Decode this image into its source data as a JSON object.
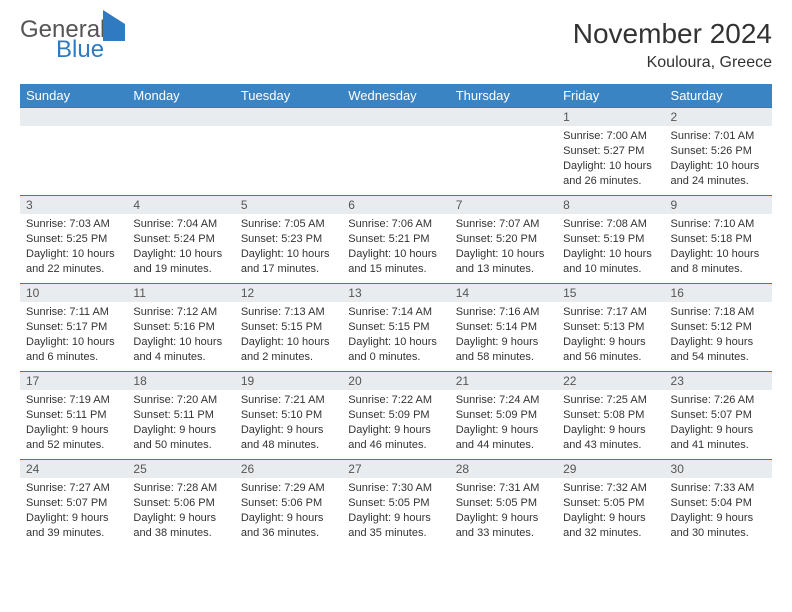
{
  "logo": {
    "general": "General",
    "blue": "Blue"
  },
  "title": "November 2024",
  "location": "Kouloura, Greece",
  "colors": {
    "header_bg": "#3b84c4",
    "border": "#2f7ac0",
    "daynum_bg": "#e9ecef",
    "text": "#333333"
  },
  "weekdays": [
    "Sunday",
    "Monday",
    "Tuesday",
    "Wednesday",
    "Thursday",
    "Friday",
    "Saturday"
  ],
  "weeks": [
    [
      null,
      null,
      null,
      null,
      null,
      {
        "n": "1",
        "sr": "Sunrise: 7:00 AM",
        "ss": "Sunset: 5:27 PM",
        "dl": "Daylight: 10 hours and 26 minutes."
      },
      {
        "n": "2",
        "sr": "Sunrise: 7:01 AM",
        "ss": "Sunset: 5:26 PM",
        "dl": "Daylight: 10 hours and 24 minutes."
      }
    ],
    [
      {
        "n": "3",
        "sr": "Sunrise: 7:03 AM",
        "ss": "Sunset: 5:25 PM",
        "dl": "Daylight: 10 hours and 22 minutes."
      },
      {
        "n": "4",
        "sr": "Sunrise: 7:04 AM",
        "ss": "Sunset: 5:24 PM",
        "dl": "Daylight: 10 hours and 19 minutes."
      },
      {
        "n": "5",
        "sr": "Sunrise: 7:05 AM",
        "ss": "Sunset: 5:23 PM",
        "dl": "Daylight: 10 hours and 17 minutes."
      },
      {
        "n": "6",
        "sr": "Sunrise: 7:06 AM",
        "ss": "Sunset: 5:21 PM",
        "dl": "Daylight: 10 hours and 15 minutes."
      },
      {
        "n": "7",
        "sr": "Sunrise: 7:07 AM",
        "ss": "Sunset: 5:20 PM",
        "dl": "Daylight: 10 hours and 13 minutes."
      },
      {
        "n": "8",
        "sr": "Sunrise: 7:08 AM",
        "ss": "Sunset: 5:19 PM",
        "dl": "Daylight: 10 hours and 10 minutes."
      },
      {
        "n": "9",
        "sr": "Sunrise: 7:10 AM",
        "ss": "Sunset: 5:18 PM",
        "dl": "Daylight: 10 hours and 8 minutes."
      }
    ],
    [
      {
        "n": "10",
        "sr": "Sunrise: 7:11 AM",
        "ss": "Sunset: 5:17 PM",
        "dl": "Daylight: 10 hours and 6 minutes."
      },
      {
        "n": "11",
        "sr": "Sunrise: 7:12 AM",
        "ss": "Sunset: 5:16 PM",
        "dl": "Daylight: 10 hours and 4 minutes."
      },
      {
        "n": "12",
        "sr": "Sunrise: 7:13 AM",
        "ss": "Sunset: 5:15 PM",
        "dl": "Daylight: 10 hours and 2 minutes."
      },
      {
        "n": "13",
        "sr": "Sunrise: 7:14 AM",
        "ss": "Sunset: 5:15 PM",
        "dl": "Daylight: 10 hours and 0 minutes."
      },
      {
        "n": "14",
        "sr": "Sunrise: 7:16 AM",
        "ss": "Sunset: 5:14 PM",
        "dl": "Daylight: 9 hours and 58 minutes."
      },
      {
        "n": "15",
        "sr": "Sunrise: 7:17 AM",
        "ss": "Sunset: 5:13 PM",
        "dl": "Daylight: 9 hours and 56 minutes."
      },
      {
        "n": "16",
        "sr": "Sunrise: 7:18 AM",
        "ss": "Sunset: 5:12 PM",
        "dl": "Daylight: 9 hours and 54 minutes."
      }
    ],
    [
      {
        "n": "17",
        "sr": "Sunrise: 7:19 AM",
        "ss": "Sunset: 5:11 PM",
        "dl": "Daylight: 9 hours and 52 minutes."
      },
      {
        "n": "18",
        "sr": "Sunrise: 7:20 AM",
        "ss": "Sunset: 5:11 PM",
        "dl": "Daylight: 9 hours and 50 minutes."
      },
      {
        "n": "19",
        "sr": "Sunrise: 7:21 AM",
        "ss": "Sunset: 5:10 PM",
        "dl": "Daylight: 9 hours and 48 minutes."
      },
      {
        "n": "20",
        "sr": "Sunrise: 7:22 AM",
        "ss": "Sunset: 5:09 PM",
        "dl": "Daylight: 9 hours and 46 minutes."
      },
      {
        "n": "21",
        "sr": "Sunrise: 7:24 AM",
        "ss": "Sunset: 5:09 PM",
        "dl": "Daylight: 9 hours and 44 minutes."
      },
      {
        "n": "22",
        "sr": "Sunrise: 7:25 AM",
        "ss": "Sunset: 5:08 PM",
        "dl": "Daylight: 9 hours and 43 minutes."
      },
      {
        "n": "23",
        "sr": "Sunrise: 7:26 AM",
        "ss": "Sunset: 5:07 PM",
        "dl": "Daylight: 9 hours and 41 minutes."
      }
    ],
    [
      {
        "n": "24",
        "sr": "Sunrise: 7:27 AM",
        "ss": "Sunset: 5:07 PM",
        "dl": "Daylight: 9 hours and 39 minutes."
      },
      {
        "n": "25",
        "sr": "Sunrise: 7:28 AM",
        "ss": "Sunset: 5:06 PM",
        "dl": "Daylight: 9 hours and 38 minutes."
      },
      {
        "n": "26",
        "sr": "Sunrise: 7:29 AM",
        "ss": "Sunset: 5:06 PM",
        "dl": "Daylight: 9 hours and 36 minutes."
      },
      {
        "n": "27",
        "sr": "Sunrise: 7:30 AM",
        "ss": "Sunset: 5:05 PM",
        "dl": "Daylight: 9 hours and 35 minutes."
      },
      {
        "n": "28",
        "sr": "Sunrise: 7:31 AM",
        "ss": "Sunset: 5:05 PM",
        "dl": "Daylight: 9 hours and 33 minutes."
      },
      {
        "n": "29",
        "sr": "Sunrise: 7:32 AM",
        "ss": "Sunset: 5:05 PM",
        "dl": "Daylight: 9 hours and 32 minutes."
      },
      {
        "n": "30",
        "sr": "Sunrise: 7:33 AM",
        "ss": "Sunset: 5:04 PM",
        "dl": "Daylight: 9 hours and 30 minutes."
      }
    ]
  ]
}
